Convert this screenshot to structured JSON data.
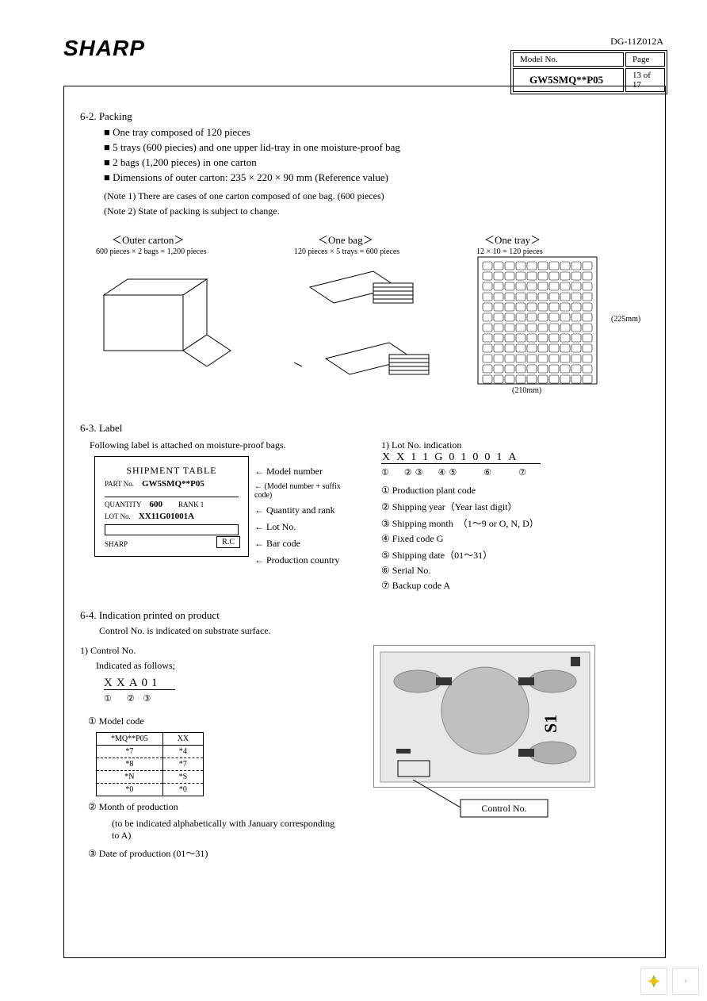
{
  "header": {
    "logo": "SHARP",
    "doc_no": "DG-11Z012A",
    "model_label": "Model No.",
    "model": "GW5SMQ**P05",
    "page_label": "Page",
    "page": "13 of 17"
  },
  "s62": {
    "title": "6-2. Packing",
    "bullets": [
      "One tray composed of 120 pieces",
      "5 trays (600 piecies) and one upper lid-tray in one moisture-proof bag",
      "2 bags (1,200 pieces) in one carton",
      "Dimensions of outer carton: 235 × 220 × 90 mm (Reference value)"
    ],
    "note1": "(Note 1) There are cases of one carton composed of one bag. (600 pieces)",
    "note2": "(Note 2) State of packing is subject to change.",
    "outer_label": "Outer carton",
    "outer_sub": "600 pieces × 2 bags = 1,200 pieces",
    "bag_label": "One bag",
    "bag_sub": "120 pieces × 5 trays = 600 pieces",
    "tray_label": "One tray",
    "tray_sub": "12 × 10 = 120 pieces",
    "tray_w": "(210mm)",
    "tray_h": "(225mm)"
  },
  "s63": {
    "title": "6-3. Label",
    "intro": "Following label is attached on moisture-proof bags.",
    "shipment_title": "SHIPMENT TABLE",
    "part_label": "PART No.",
    "part_val": "GW5SMQ**P05",
    "qty_label": "QUANTITY",
    "qty_val": "600",
    "rank_label": "RANK 1",
    "lot_label": "LOT No.",
    "lot_val": "XX11G01001A",
    "sharp": "SHARP",
    "rc": "R.C",
    "arrows": [
      "← Model number",
      "← (Model number + suffix code)",
      "← Quantity and rank",
      "← Lot No.",
      "← Bar code",
      "← Production country"
    ],
    "lot_title": "1) Lot No. indication",
    "lot_code": "XX11G01001A",
    "lot_markers": "①　②③　④⑤　　⑥　　⑦",
    "lot_items": [
      "① Production plant code",
      "② Shipping year（Year last digit）",
      "③ Shipping month　（1～9 or O, N, D）",
      "④ Fixed code G",
      "⑤ Shipping date（01～31）",
      "⑥ Serial No.",
      "⑦ Backup code A"
    ]
  },
  "s64": {
    "title": "6-4. Indication printed on product",
    "sub": "Control No. is indicated on substrate surface.",
    "ctrl_title": "1) Control No.",
    "indicated": "Indicated as follows;",
    "ctrl_code": "XXA01",
    "ctrl_markers": "①　② ③",
    "model_code_label": "① Model code",
    "table": {
      "header": [
        "*MQ**P05",
        "XX"
      ],
      "rows": [
        [
          "*7",
          "*4"
        ],
        [
          "*8",
          "*7"
        ],
        [
          "*N",
          "*S"
        ],
        [
          "*0",
          "*0"
        ]
      ]
    },
    "month_label": "② Month of production",
    "month_note": "(to be indicated alphabetically with January corresponding to A)",
    "date_label": "③ Date of production (01～31)",
    "control_no_label": "Control No.",
    "s1": "S1"
  }
}
